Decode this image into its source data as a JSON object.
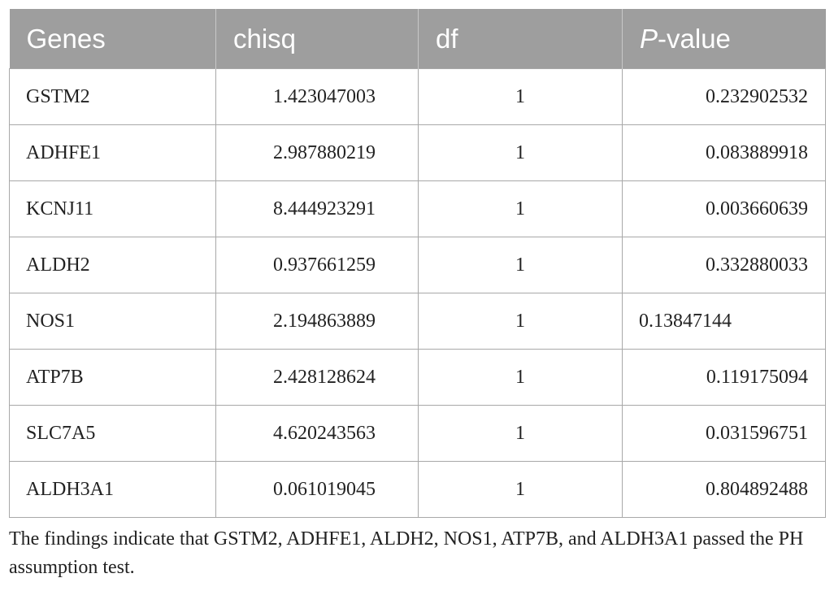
{
  "table": {
    "header": [
      "Genes",
      "chisq",
      "df",
      {
        "italic": "P",
        "rest": "-value"
      }
    ],
    "rows": [
      [
        "GSTM2",
        "1.423047003",
        "1",
        "0.232902532"
      ],
      [
        "ADHFE1",
        "2.987880219",
        "1",
        "0.083889918"
      ],
      [
        "KCNJ11",
        "8.444923291",
        "1",
        "0.003660639"
      ],
      [
        "ALDH2",
        "0.937661259",
        "1",
        "0.332880033"
      ],
      [
        "NOS1",
        "2.194863889",
        "1",
        "0.13847144"
      ],
      [
        "ATP7B",
        "2.428128624",
        "1",
        "0.119175094"
      ],
      [
        "SLC7A5",
        "4.620243563",
        "1",
        "0.031596751"
      ],
      [
        "ALDH3A1",
        "0.061019045",
        "1",
        "0.804892488"
      ]
    ],
    "footnote": "The findings indicate that GSTM2, ADHFE1, ALDH2, NOS1, ATP7B, and ALDH3A1 passed the PH assumption test."
  }
}
